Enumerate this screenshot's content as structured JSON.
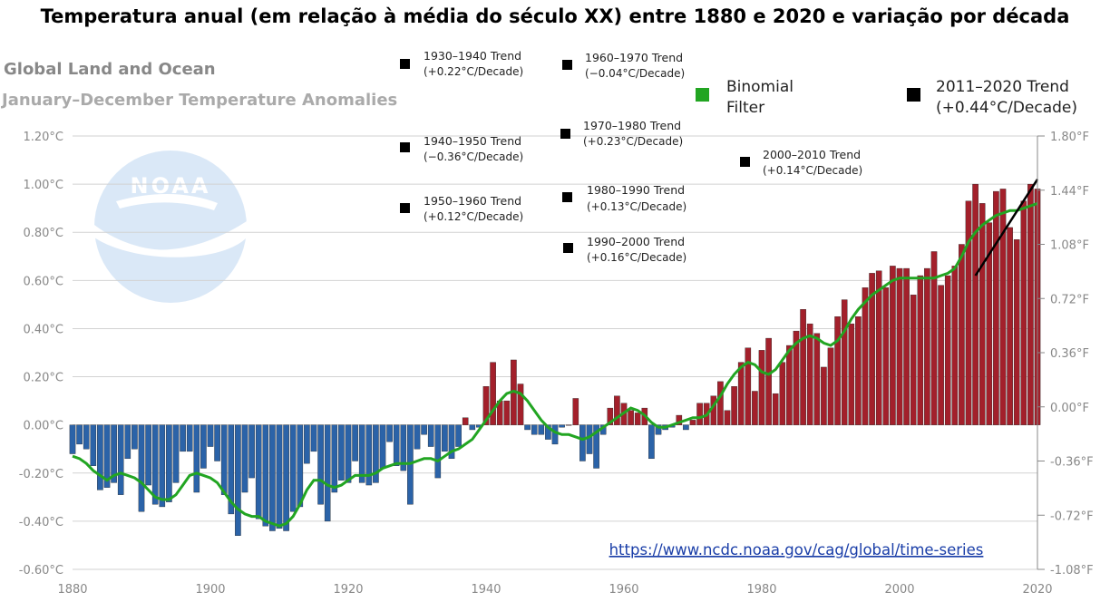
{
  "title": "Temperatura anual (em relação à média do século XX) entre 1880 e 2020 e variação por década",
  "subtitle1": "Global Land and Ocean",
  "subtitle2": "January–December Temperature Anomalies",
  "source_link": "https://www.ncdc.noaa.gov/cag/global/time-series",
  "logo_text": "NOAA",
  "colors": {
    "positive": "#a3202b",
    "negative": "#2b63a8",
    "filter": "#22a522",
    "trend": "#000000",
    "link": "#1a3ea8"
  },
  "legend": {
    "filter_line1": "Binomial",
    "filter_line2": "Filter",
    "trend_line1": "2011–2020 Trend",
    "trend_line2": "(+0.44°C/Decade)"
  },
  "trends": [
    {
      "l1": "1930–1940 Trend",
      "l2": "(+0.22°C/Decade)"
    },
    {
      "l1": "1960–1970 Trend",
      "l2": "(−0.04°C/Decade)"
    },
    {
      "l1": "1940–1950 Trend",
      "l2": "(−0.36°C/Decade)"
    },
    {
      "l1": "1970–1980 Trend",
      "l2": "(+0.23°C/Decade)"
    },
    {
      "l1": "2000–2010 Trend",
      "l2": "(+0.14°C/Decade)"
    },
    {
      "l1": "1950–1960 Trend",
      "l2": "(+0.12°C/Decade)"
    },
    {
      "l1": "1980–1990 Trend",
      "l2": "(+0.13°C/Decade)"
    },
    {
      "l1": "1990–2000 Trend",
      "l2": "(+0.16°C/Decade)"
    }
  ],
  "chart_data": {
    "type": "bar",
    "title": "Temperatura anual (em relação à média do século XX) entre 1880 e 2020 e variação por década",
    "xlabel": "",
    "ylabel": "",
    "xlim": [
      1880,
      2020
    ],
    "ylim": [
      -0.6,
      1.2
    ],
    "y2lim": [
      -1.08,
      1.8
    ],
    "x_ticks": [
      "1880",
      "1900",
      "1920",
      "1940",
      "1960",
      "1980",
      "2000",
      "2020"
    ],
    "y_ticks_left": [
      "1.20°C",
      "1.00°C",
      "0.80°C",
      "0.60°C",
      "0.40°C",
      "0.20°C",
      "0.00°C",
      "-0.20°C",
      "-0.40°C",
      "-0.60°C"
    ],
    "y_ticks_right": [
      "1.80°F",
      "1.44°F",
      "1.08°F",
      "0.72°F",
      "0.36°F",
      "0.00°F",
      "-0.36°F",
      "-0.72°F",
      "-1.08°F"
    ],
    "grid": true,
    "legend_position": "top-right",
    "years_start": 1880,
    "series": [
      {
        "name": "Global Land and Ocean",
        "values": [
          -0.12,
          -0.08,
          -0.1,
          -0.17,
          -0.27,
          -0.26,
          -0.24,
          -0.29,
          -0.14,
          -0.1,
          -0.36,
          -0.25,
          -0.33,
          -0.34,
          -0.32,
          -0.24,
          -0.11,
          -0.11,
          -0.28,
          -0.18,
          -0.09,
          -0.15,
          -0.29,
          -0.37,
          -0.46,
          -0.28,
          -0.22,
          -0.39,
          -0.42,
          -0.44,
          -0.43,
          -0.44,
          -0.36,
          -0.34,
          -0.16,
          -0.11,
          -0.33,
          -0.4,
          -0.28,
          -0.23,
          -0.24,
          -0.15,
          -0.24,
          -0.25,
          -0.24,
          -0.18,
          -0.07,
          -0.17,
          -0.19,
          -0.33,
          -0.1,
          -0.04,
          -0.09,
          -0.22,
          -0.11,
          -0.14,
          -0.09,
          0.03,
          -0.02,
          -0.01,
          0.16,
          0.26,
          0.1,
          0.1,
          0.27,
          0.17,
          -0.02,
          -0.04,
          -0.04,
          -0.06,
          -0.08,
          -0.01,
          0.0,
          0.11,
          -0.15,
          -0.12,
          -0.18,
          -0.04,
          0.07,
          0.12,
          0.09,
          0.06,
          0.05,
          0.07,
          -0.14,
          -0.04,
          -0.02,
          -0.01,
          0.04,
          -0.02,
          0.02,
          0.09,
          0.09,
          0.12,
          0.18,
          0.06,
          0.16,
          0.26,
          0.32,
          0.14,
          0.31,
          0.36,
          0.13,
          0.26,
          0.33,
          0.39,
          0.48,
          0.42,
          0.38,
          0.24,
          0.32,
          0.45,
          0.52,
          0.42,
          0.45,
          0.57,
          0.63,
          0.64,
          0.57,
          0.66,
          0.65,
          0.65,
          0.54,
          0.62,
          0.65,
          0.72,
          0.58,
          0.62,
          0.66,
          0.75,
          0.93,
          1.0,
          0.92,
          0.84,
          0.97,
          0.98,
          0.82,
          0.77,
          0.93,
          1.0,
          0.98
        ]
      },
      {
        "name": "Binomial Filter",
        "values": [
          -0.13,
          -0.14,
          -0.16,
          -0.19,
          -0.21,
          -0.23,
          -0.21,
          -0.2,
          -0.21,
          -0.22,
          -0.24,
          -0.27,
          -0.3,
          -0.31,
          -0.31,
          -0.29,
          -0.25,
          -0.21,
          -0.2,
          -0.21,
          -0.22,
          -0.24,
          -0.28,
          -0.32,
          -0.35,
          -0.37,
          -0.38,
          -0.38,
          -0.4,
          -0.41,
          -0.42,
          -0.41,
          -0.38,
          -0.33,
          -0.27,
          -0.23,
          -0.23,
          -0.25,
          -0.26,
          -0.25,
          -0.23,
          -0.21,
          -0.21,
          -0.21,
          -0.2,
          -0.18,
          -0.17,
          -0.16,
          -0.16,
          -0.16,
          -0.15,
          -0.14,
          -0.14,
          -0.15,
          -0.13,
          -0.11,
          -0.1,
          -0.08,
          -0.06,
          -0.02,
          0.02,
          0.06,
          0.1,
          0.13,
          0.14,
          0.13,
          0.1,
          0.06,
          0.02,
          -0.01,
          -0.03,
          -0.04,
          -0.04,
          -0.05,
          -0.06,
          -0.05,
          -0.03,
          -0.01,
          0.01,
          0.03,
          0.05,
          0.07,
          0.06,
          0.04,
          0.01,
          -0.01,
          -0.01,
          0.0,
          0.01,
          0.02,
          0.03,
          0.03,
          0.04,
          0.08,
          0.12,
          0.17,
          0.21,
          0.24,
          0.26,
          0.25,
          0.22,
          0.21,
          0.23,
          0.27,
          0.31,
          0.34,
          0.36,
          0.37,
          0.36,
          0.34,
          0.33,
          0.35,
          0.39,
          0.44,
          0.48,
          0.51,
          0.54,
          0.56,
          0.58,
          0.6,
          0.61,
          0.61,
          0.61,
          0.61,
          0.61,
          0.61,
          0.62,
          0.63,
          0.65,
          0.7,
          0.76,
          0.8,
          0.83,
          0.85,
          0.87,
          0.88,
          0.89,
          0.89,
          0.9,
          0.91,
          0.92
        ]
      },
      {
        "name": "2011–2020 Trend",
        "x": [
          2011,
          2020
        ],
        "values": [
          0.62,
          1.02
        ]
      }
    ]
  }
}
